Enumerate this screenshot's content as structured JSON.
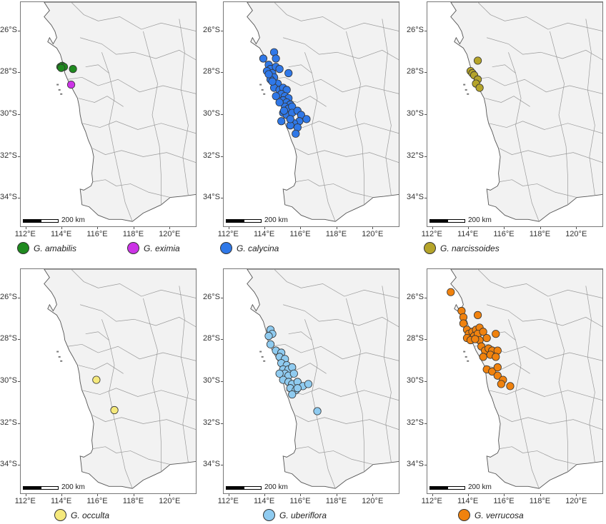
{
  "map": {
    "lon_labels": [
      "112°E",
      "114°E",
      "116°E",
      "118°E",
      "120°E"
    ],
    "lon_values": [
      112,
      114,
      116,
      118,
      120
    ],
    "lat_labels": [
      "26°S",
      "28°S",
      "30°S",
      "32°S",
      "34°S"
    ],
    "lat_values": [
      -26,
      -28,
      -30,
      -32,
      -34
    ],
    "extent": {
      "lon_min": 111.7,
      "lon_max": 121.5,
      "lat_min": -35.4,
      "lat_max": -24.6
    },
    "scalebar_label": "200 km",
    "land_color": "#f2f2f2",
    "sea_color": "#ffffff",
    "line_color": "#9a9a9a"
  },
  "panels": [
    {
      "species": [
        {
          "name": "G. amabilis",
          "color": "#1f8a1f",
          "points": [
            [
              113.9,
              -27.7
            ],
            [
              114.0,
              -27.65
            ],
            [
              114.1,
              -27.7
            ],
            [
              113.95,
              -27.75
            ],
            [
              114.6,
              -27.8
            ]
          ]
        },
        {
          "name": "G. eximia",
          "color": "#cc33e6",
          "points": [
            [
              114.5,
              -28.55
            ]
          ]
        }
      ]
    },
    {
      "species": [
        {
          "name": "G. calycina",
          "color": "#2f78e8",
          "points": [
            [
              113.9,
              -27.3
            ],
            [
              114.5,
              -27.0
            ],
            [
              114.6,
              -27.3
            ],
            [
              114.2,
              -27.6
            ],
            [
              114.3,
              -27.8
            ],
            [
              114.1,
              -27.9
            ],
            [
              114.4,
              -28.0
            ],
            [
              114.5,
              -28.2
            ],
            [
              114.3,
              -28.3
            ],
            [
              114.6,
              -27.7
            ],
            [
              114.8,
              -27.8
            ],
            [
              115.3,
              -28.0
            ],
            [
              114.7,
              -28.5
            ],
            [
              114.5,
              -28.7
            ],
            [
              114.8,
              -28.8
            ],
            [
              115.0,
              -28.7
            ],
            [
              115.2,
              -28.8
            ],
            [
              114.9,
              -29.0
            ],
            [
              115.1,
              -29.1
            ],
            [
              115.3,
              -29.2
            ],
            [
              115.0,
              -29.3
            ],
            [
              115.2,
              -29.4
            ],
            [
              115.4,
              -29.5
            ],
            [
              115.1,
              -29.6
            ],
            [
              115.3,
              -29.7
            ],
            [
              115.5,
              -29.6
            ],
            [
              115.0,
              -29.9
            ],
            [
              115.2,
              -30.0
            ],
            [
              115.5,
              -29.9
            ],
            [
              115.8,
              -29.8
            ],
            [
              116.0,
              -30.0
            ],
            [
              116.3,
              -30.2
            ],
            [
              115.9,
              -30.3
            ],
            [
              115.6,
              -30.4
            ],
            [
              115.4,
              -30.5
            ],
            [
              115.8,
              -30.6
            ],
            [
              115.7,
              -30.9
            ],
            [
              114.9,
              -30.3
            ],
            [
              115.4,
              -30.2
            ],
            [
              114.2,
              -28.05
            ],
            [
              114.4,
              -28.4
            ],
            [
              114.6,
              -29.1
            ],
            [
              114.8,
              -29.4
            ],
            [
              115.05,
              -29.8
            ]
          ]
        }
      ]
    },
    {
      "species": [
        {
          "name": "G. narcissoides",
          "color": "#b5a42a",
          "points": [
            [
              114.5,
              -27.4
            ],
            [
              114.1,
              -27.9
            ],
            [
              114.2,
              -28.0
            ],
            [
              114.3,
              -28.1
            ],
            [
              114.5,
              -28.3
            ],
            [
              114.4,
              -28.5
            ],
            [
              114.6,
              -28.7
            ]
          ]
        }
      ]
    },
    {
      "species": [
        {
          "name": "G. occulta",
          "color": "#f5e97c",
          "points": [
            [
              115.9,
              -29.9
            ],
            [
              116.9,
              -31.35
            ]
          ]
        }
      ]
    },
    {
      "species": [
        {
          "name": "G. uberiflora",
          "color": "#8fcbf0",
          "points": [
            [
              114.3,
              -27.5
            ],
            [
              114.4,
              -27.7
            ],
            [
              114.2,
              -27.8
            ],
            [
              114.3,
              -28.2
            ],
            [
              114.6,
              -28.5
            ],
            [
              114.9,
              -28.6
            ],
            [
              114.8,
              -28.8
            ],
            [
              115.1,
              -28.9
            ],
            [
              114.9,
              -29.1
            ],
            [
              115.2,
              -29.2
            ],
            [
              115.0,
              -29.4
            ],
            [
              115.3,
              -29.4
            ],
            [
              115.5,
              -29.3
            ],
            [
              115.1,
              -29.6
            ],
            [
              115.3,
              -29.7
            ],
            [
              115.6,
              -29.6
            ],
            [
              115.0,
              -29.9
            ],
            [
              115.3,
              -30.0
            ],
            [
              115.5,
              -30.1
            ],
            [
              115.8,
              -30.0
            ],
            [
              116.1,
              -30.2
            ],
            [
              116.4,
              -30.1
            ],
            [
              115.4,
              -30.3
            ],
            [
              115.7,
              -30.4
            ],
            [
              115.5,
              -30.6
            ],
            [
              114.8,
              -29.6
            ],
            [
              115.8,
              -30.3
            ],
            [
              116.9,
              -31.4
            ]
          ]
        }
      ]
    },
    {
      "species": [
        {
          "name": "G. verrucosa",
          "color": "#f0820e",
          "points": [
            [
              113.0,
              -25.7
            ],
            [
              113.6,
              -26.6
            ],
            [
              113.7,
              -26.9
            ],
            [
              114.5,
              -26.8
            ],
            [
              113.7,
              -27.2
            ],
            [
              113.9,
              -27.5
            ],
            [
              114.0,
              -27.7
            ],
            [
              114.2,
              -27.6
            ],
            [
              114.4,
              -27.5
            ],
            [
              114.6,
              -27.4
            ],
            [
              114.3,
              -27.8
            ],
            [
              114.5,
              -27.7
            ],
            [
              114.8,
              -27.6
            ],
            [
              113.9,
              -27.9
            ],
            [
              114.1,
              -28.0
            ],
            [
              114.6,
              -28.0
            ],
            [
              115.0,
              -27.9
            ],
            [
              115.5,
              -27.7
            ],
            [
              114.7,
              -28.3
            ],
            [
              114.9,
              -28.5
            ],
            [
              115.1,
              -28.4
            ],
            [
              115.3,
              -28.5
            ],
            [
              115.6,
              -28.5
            ],
            [
              115.2,
              -28.7
            ],
            [
              114.8,
              -28.8
            ],
            [
              115.5,
              -28.8
            ],
            [
              115.0,
              -29.4
            ],
            [
              115.3,
              -29.5
            ],
            [
              115.6,
              -29.3
            ],
            [
              115.6,
              -29.7
            ],
            [
              115.9,
              -29.9
            ],
            [
              115.8,
              -30.1
            ],
            [
              116.3,
              -30.2
            ],
            [
              114.35,
              -27.95
            ]
          ]
        }
      ]
    }
  ]
}
